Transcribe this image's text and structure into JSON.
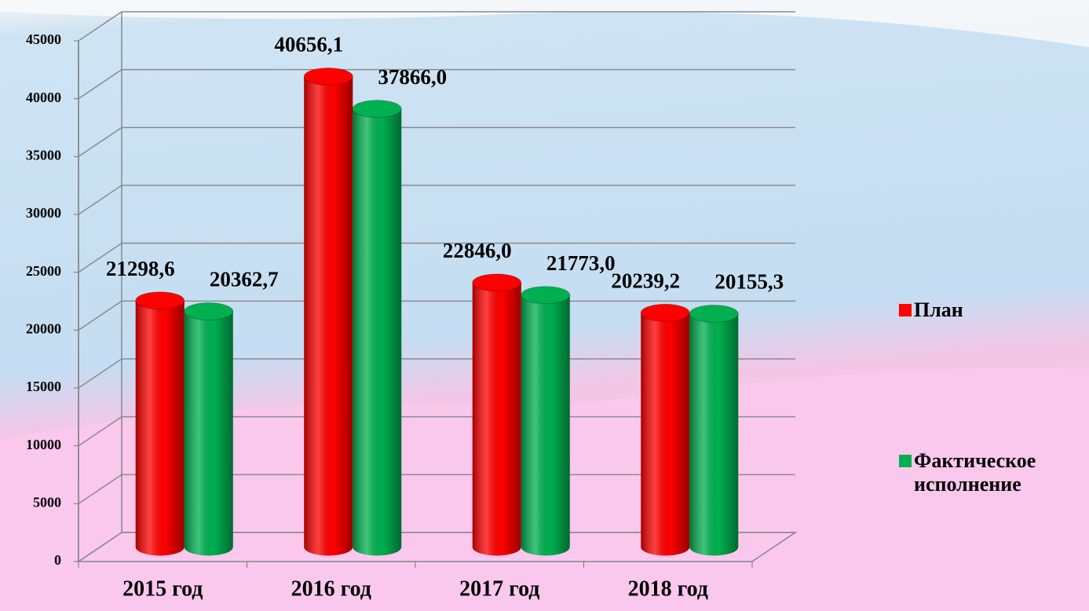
{
  "chart_data": {
    "type": "bar3d",
    "categories": [
      "2015 год",
      "2016 год",
      "2017 год",
      "2018 год"
    ],
    "series": [
      {
        "name": "План",
        "color": "#ff0000",
        "values": [
          21298.6,
          40656.1,
          22846.0,
          20239.2
        ],
        "value_labels": [
          "21298,6",
          "40656,1",
          "22846,0",
          "20239,2"
        ]
      },
      {
        "name": "Фактическое исполнение",
        "color": "#00b050",
        "values": [
          20362.7,
          37866.0,
          21773.0,
          20155.3
        ],
        "value_labels": [
          "20362,7",
          "37866,0",
          "21773,0",
          "20155,3"
        ]
      }
    ],
    "ylim": [
      0,
      45000
    ],
    "yticks": [
      0,
      5000,
      10000,
      15000,
      20000,
      25000,
      30000,
      35000,
      40000,
      45000
    ],
    "grid": true,
    "legend": "right"
  }
}
